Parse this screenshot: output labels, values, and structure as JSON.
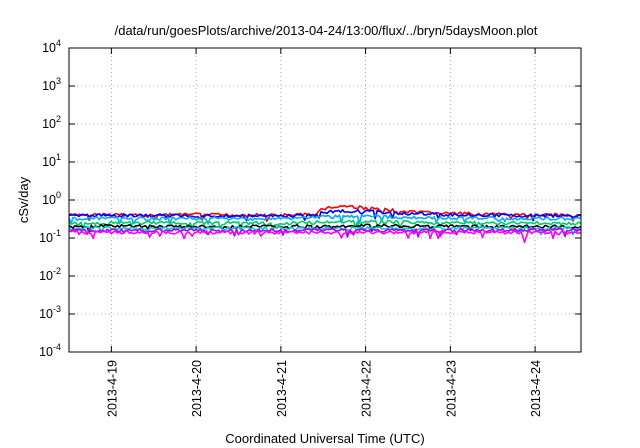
{
  "chart_data": {
    "type": "line",
    "title": "/data/run/goesPlots/archive/2013-04-24/13:00/flux/../bryn/5daysMoon.plot",
    "xlabel": "Coordinated Universal Time (UTC)",
    "ylabel": "cSv/day",
    "yscale": "log",
    "ylim": [
      0.0001,
      10000
    ],
    "xlim": [
      "2013-04-18 12:00",
      "2013-04-24 13:00"
    ],
    "grid": true,
    "y_ticks": [
      {
        "base": "10",
        "exp": "4",
        "value": 10000
      },
      {
        "base": "10",
        "exp": "3",
        "value": 1000
      },
      {
        "base": "10",
        "exp": "2",
        "value": 100
      },
      {
        "base": "10",
        "exp": "1",
        "value": 10
      },
      {
        "base": "10",
        "exp": "0",
        "value": 1
      },
      {
        "base": "10",
        "exp": "-1",
        "value": 0.1
      },
      {
        "base": "10",
        "exp": "-2",
        "value": 0.01
      },
      {
        "base": "10",
        "exp": "-3",
        "value": 0.001
      },
      {
        "base": "10",
        "exp": "-4",
        "value": 0.0001
      }
    ],
    "x_ticks": [
      {
        "label": "2013-4-19",
        "value": "2013-04-19"
      },
      {
        "label": "2013-4-20",
        "value": "2013-04-20"
      },
      {
        "label": "2013-4-21",
        "value": "2013-04-21"
      },
      {
        "label": "2013-4-22",
        "value": "2013-04-22"
      },
      {
        "label": "2013-4-23",
        "value": "2013-04-23"
      },
      {
        "label": "2013-4-24",
        "value": "2013-04-24"
      }
    ],
    "series": [
      {
        "color": "#ff0000",
        "points": [
          [
            "2013-04-18 12:00",
            0.4
          ],
          [
            "2013-04-19 00:00",
            0.42
          ],
          [
            "2013-04-19 12:00",
            0.4
          ],
          [
            "2013-04-20 00:00",
            0.41
          ],
          [
            "2013-04-20 12:00",
            0.4
          ],
          [
            "2013-04-21 00:00",
            0.4
          ],
          [
            "2013-04-21 09:00",
            0.41
          ],
          [
            "2013-04-21 12:00",
            0.6
          ],
          [
            "2013-04-21 18:00",
            0.7
          ],
          [
            "2013-04-22 00:00",
            0.62
          ],
          [
            "2013-04-22 06:00",
            0.55
          ],
          [
            "2013-04-22 12:00",
            0.48
          ],
          [
            "2013-04-23 00:00",
            0.44
          ],
          [
            "2013-04-23 12:00",
            0.42
          ],
          [
            "2013-04-24 00:00",
            0.41
          ],
          [
            "2013-04-24 13:00",
            0.4
          ]
        ]
      },
      {
        "color": "#0000ff",
        "points": [
          [
            "2013-04-18 12:00",
            0.38
          ],
          [
            "2013-04-19 00:00",
            0.4
          ],
          [
            "2013-04-19 12:00",
            0.38
          ],
          [
            "2013-04-20 00:00",
            0.39
          ],
          [
            "2013-04-20 12:00",
            0.38
          ],
          [
            "2013-04-21 00:00",
            0.38
          ],
          [
            "2013-04-21 09:00",
            0.39
          ],
          [
            "2013-04-21 12:00",
            0.48
          ],
          [
            "2013-04-21 18:00",
            0.52
          ],
          [
            "2013-04-22 00:00",
            0.5
          ],
          [
            "2013-04-22 06:00",
            0.47
          ],
          [
            "2013-04-22 12:00",
            0.44
          ],
          [
            "2013-04-23 00:00",
            0.41
          ],
          [
            "2013-04-23 12:00",
            0.4
          ],
          [
            "2013-04-24 00:00",
            0.39
          ],
          [
            "2013-04-24 13:00",
            0.38
          ]
        ]
      },
      {
        "color": "#00aaff",
        "points": [
          [
            "2013-04-18 12:00",
            0.32
          ],
          [
            "2013-04-19 00:00",
            0.33
          ],
          [
            "2013-04-19 12:00",
            0.32
          ],
          [
            "2013-04-20 00:00",
            0.33
          ],
          [
            "2013-04-20 12:00",
            0.32
          ],
          [
            "2013-04-21 00:00",
            0.32
          ],
          [
            "2013-04-21 12:00",
            0.36
          ],
          [
            "2013-04-22 00:00",
            0.37
          ],
          [
            "2013-04-22 12:00",
            0.35
          ],
          [
            "2013-04-23 00:00",
            0.33
          ],
          [
            "2013-04-24 00:00",
            0.33
          ],
          [
            "2013-04-24 13:00",
            0.32
          ]
        ]
      },
      {
        "color": "#00cc66",
        "points": [
          [
            "2013-04-18 12:00",
            0.24
          ],
          [
            "2013-04-19 00:00",
            0.25
          ],
          [
            "2013-04-20 00:00",
            0.25
          ],
          [
            "2013-04-21 00:00",
            0.24
          ],
          [
            "2013-04-21 12:00",
            0.27
          ],
          [
            "2013-04-22 00:00",
            0.27
          ],
          [
            "2013-04-22 12:00",
            0.26
          ],
          [
            "2013-04-23 00:00",
            0.25
          ],
          [
            "2013-04-24 00:00",
            0.25
          ],
          [
            "2013-04-24 13:00",
            0.24
          ]
        ]
      },
      {
        "color": "#000000",
        "points": [
          [
            "2013-04-18 12:00",
            0.2
          ],
          [
            "2013-04-19 00:00",
            0.21
          ],
          [
            "2013-04-20 00:00",
            0.2
          ],
          [
            "2013-04-21 00:00",
            0.2
          ],
          [
            "2013-04-22 00:00",
            0.21
          ],
          [
            "2013-04-23 00:00",
            0.2
          ],
          [
            "2013-04-24 00:00",
            0.2
          ],
          [
            "2013-04-24 13:00",
            0.2
          ]
        ]
      },
      {
        "color": "#00cccc",
        "points": [
          [
            "2013-04-18 12:00",
            0.18
          ],
          [
            "2013-04-19 00:00",
            0.18
          ],
          [
            "2013-04-20 00:00",
            0.18
          ],
          [
            "2013-04-21 00:00",
            0.18
          ],
          [
            "2013-04-22 00:00",
            0.18
          ],
          [
            "2013-04-23 00:00",
            0.18
          ],
          [
            "2013-04-24 00:00",
            0.18
          ],
          [
            "2013-04-24 13:00",
            0.18
          ]
        ]
      },
      {
        "color": "#aa00ff",
        "points": [
          [
            "2013-04-18 12:00",
            0.16
          ],
          [
            "2013-04-19 00:00",
            0.16
          ],
          [
            "2013-04-20 00:00",
            0.16
          ],
          [
            "2013-04-21 00:00",
            0.16
          ],
          [
            "2013-04-22 00:00",
            0.16
          ],
          [
            "2013-04-23 00:00",
            0.16
          ],
          [
            "2013-04-24 00:00",
            0.16
          ],
          [
            "2013-04-24 13:00",
            0.16
          ]
        ]
      },
      {
        "color": "#ff00ff",
        "points": [
          [
            "2013-04-18 12:00",
            0.14
          ],
          [
            "2013-04-19 00:00",
            0.14
          ],
          [
            "2013-04-20 00:00",
            0.14
          ],
          [
            "2013-04-21 00:00",
            0.14
          ],
          [
            "2013-04-22 00:00",
            0.14
          ],
          [
            "2013-04-23 00:00",
            0.14
          ],
          [
            "2013-04-23 20:00",
            0.14
          ],
          [
            "2013-04-23 21:00",
            0.08
          ],
          [
            "2013-04-23 22:00",
            0.14
          ],
          [
            "2013-04-24 00:00",
            0.14
          ],
          [
            "2013-04-24 13:00",
            0.14
          ]
        ]
      }
    ]
  }
}
